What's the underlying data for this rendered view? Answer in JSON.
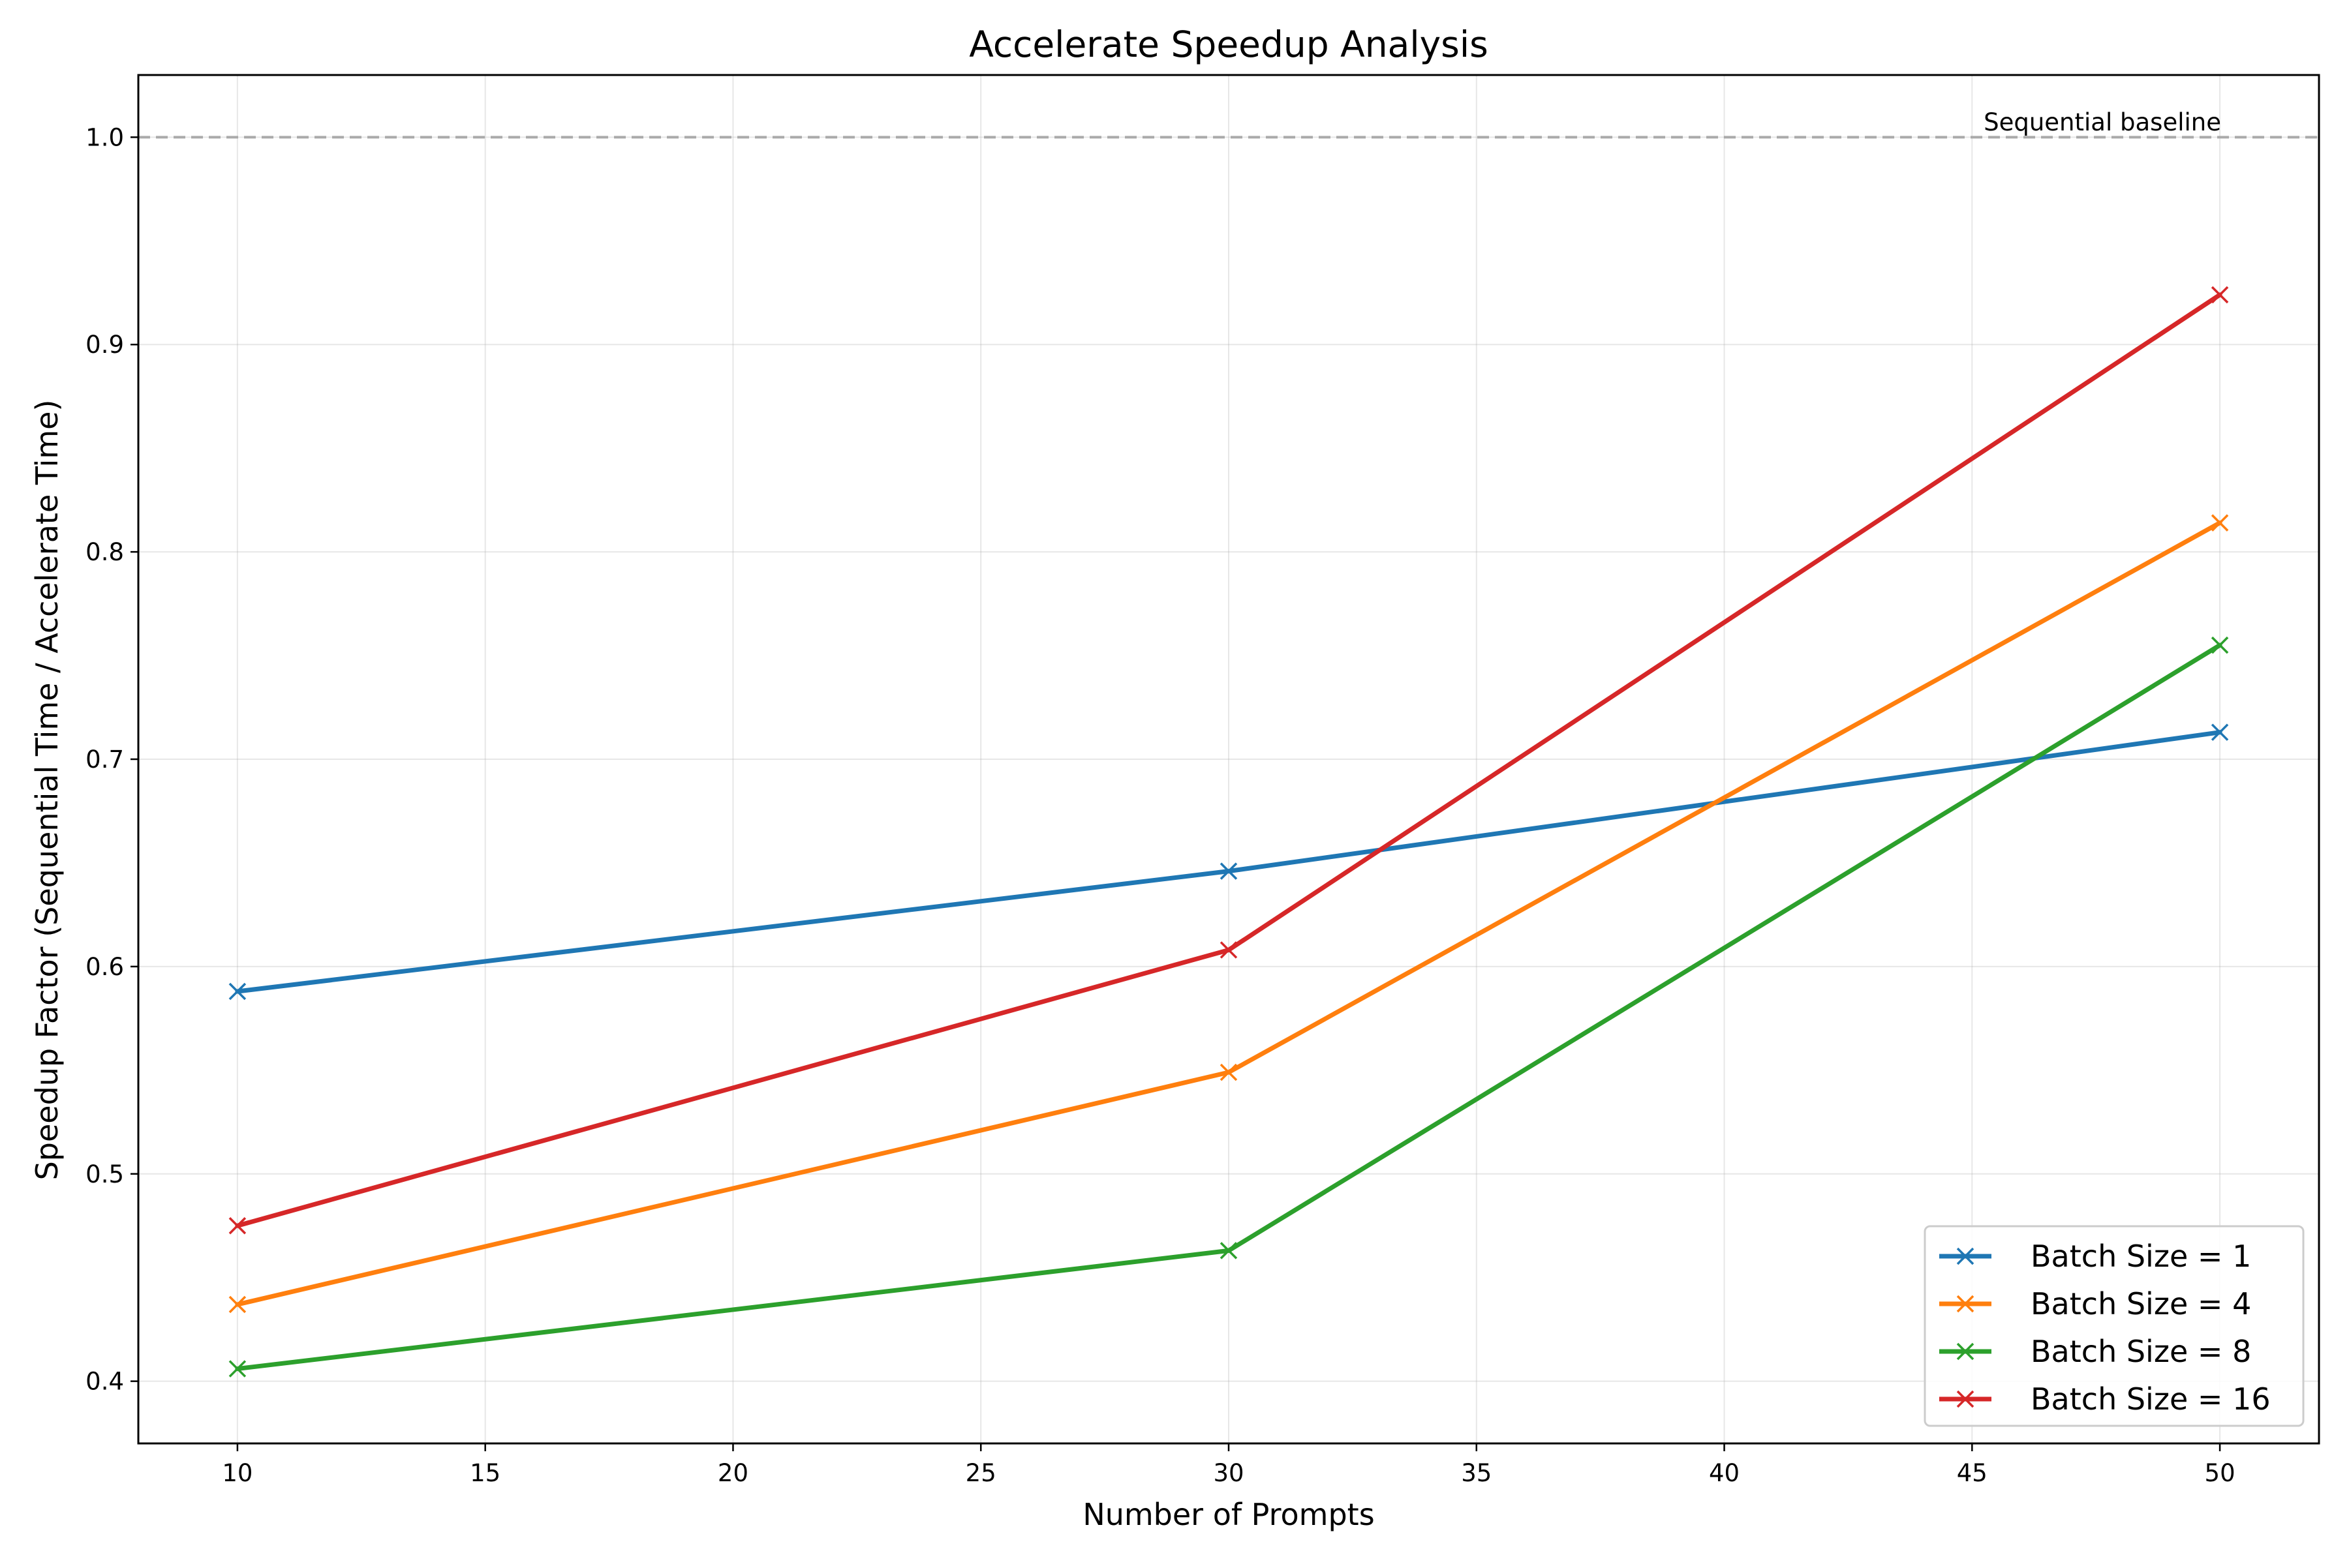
{
  "chart_data": {
    "type": "line",
    "title": "Accelerate Speedup Analysis",
    "xlabel": "Number of Prompts",
    "ylabel": "Speedup Factor (Sequential Time / Accelerate Time)",
    "xlim": [
      8,
      52
    ],
    "ylim": [
      0.37,
      1.03
    ],
    "xticks": [
      10,
      15,
      20,
      25,
      30,
      35,
      40,
      45,
      50
    ],
    "yticks": [
      0.4,
      0.5,
      0.6,
      0.7,
      0.8,
      0.9,
      1.0
    ],
    "xtick_labels": [
      "10",
      "15",
      "20",
      "25",
      "30",
      "35",
      "40",
      "45",
      "50"
    ],
    "ytick_labels": [
      "0.4",
      "0.5",
      "0.6",
      "0.7",
      "0.8",
      "0.9",
      "1.0"
    ],
    "grid": true,
    "legend_position": "lower-right",
    "x": [
      10,
      30,
      50
    ],
    "series": [
      {
        "name": "Batch Size = 1",
        "color": "#1f77b4",
        "marker": "x",
        "values": [
          0.588,
          0.646,
          0.713
        ]
      },
      {
        "name": "Batch Size = 4",
        "color": "#ff7f0e",
        "marker": "x",
        "values": [
          0.437,
          0.549,
          0.814
        ]
      },
      {
        "name": "Batch Size = 8",
        "color": "#2ca02c",
        "marker": "x",
        "values": [
          0.406,
          0.463,
          0.755
        ]
      },
      {
        "name": "Batch Size = 16",
        "color": "#d62728",
        "marker": "x",
        "values": [
          0.475,
          0.608,
          0.924
        ]
      }
    ],
    "reference_line": {
      "y": 1.0,
      "style": "dashed",
      "color": "#aaaaaa",
      "label": "Sequential baseline"
    }
  }
}
